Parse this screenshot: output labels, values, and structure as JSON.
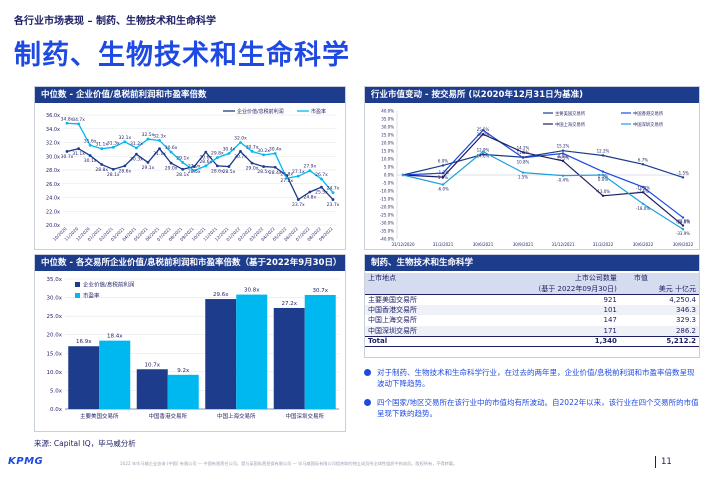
{
  "header": {
    "breadcrumb": "各行业市场表现 – 制药、生物技术和生命科学",
    "title": "制药、生物技术和生命科学"
  },
  "panel1": {
    "title": "中位数 - 企业价值/息税前利润和市盈率倍数",
    "legend": [
      "企业价值/息税前利润",
      "市盈率"
    ]
  },
  "panel2": {
    "title": "行业市值变动 - 按交易所 (以2020年12月31日为基准)",
    "legend": [
      "主要美国交易所",
      "中国香港交易所",
      "中国上海交易所",
      "中国深圳交易所"
    ]
  },
  "panel3": {
    "title": "中位数 - 各交易所企业价值/息税前利润和市盈率倍数（基于2022年9月30日）",
    "legend": [
      "企业价值/息税前利润",
      "市盈率"
    ]
  },
  "panel4": {
    "title": "制药、生物技术和生命科学",
    "head": {
      "col1": "上市地点",
      "col2": "上市公司数量",
      "col2b": "(基于 2022年09月30日)",
      "col3": "市值",
      "col3b": "美元 十亿元"
    },
    "rows": [
      {
        "place": "主要美国交易所",
        "count": "921",
        "cap": "4,250.4"
      },
      {
        "place": "中国香港交易所",
        "count": "101",
        "cap": "346.3"
      },
      {
        "place": "中国上海交易所",
        "count": "147",
        "cap": "329.3"
      },
      {
        "place": "中国深圳交易所",
        "count": "171",
        "cap": "286.2"
      }
    ],
    "total": {
      "place": "Total",
      "count": "1,340",
      "cap": "5,212.2"
    }
  },
  "bullets": [
    "对于制药、生物技术和生命科学行业，在过去的两年里，企业价值/息税前利润和市盈率倍数呈现波动下降趋势。",
    "四个国家/地区交易所在该行业中的市值均有所波动。自2022年以来，该行业在四个交易所的市值呈现下跌的趋势。"
  ],
  "source": "来源: Capital IQ，毕马威分析",
  "footer": "2022 年毕马威企业咨询 (中国) 有限公司 — 中国有限责任公司，是与英国私营担保有限公司 — 毕马威国际有限公司相关联的独立成员所全球性组织中的成员。版权所有，不得转载。",
  "page_number": "11",
  "logo": "KPMG",
  "colors": {
    "navy": "#1e3c8c",
    "blue": "#1e49e2",
    "cyan": "#1ea0e0",
    "teal": "#00b8f0"
  },
  "chart_data": [
    {
      "type": "line",
      "title": "中位数 - 企业价值/息税前利润和市盈率倍数",
      "ylim": [
        20,
        36
      ],
      "yticks": [
        "20.0x",
        "22.0x",
        "24.0x",
        "26.0x",
        "28.0x",
        "30.0x",
        "32.0x",
        "34.0x",
        "36.0x"
      ],
      "categories": [
        "10/2020",
        "11/2020",
        "12/2020",
        "01/2021",
        "02/2021",
        "03/2021",
        "04/2021",
        "05/2021",
        "06/2021",
        "07/2021",
        "08/2021",
        "09/2021",
        "10/2021",
        "11/2021",
        "12/2021",
        "01/2022",
        "02/2022",
        "03/2022",
        "04/2022",
        "05/2022",
        "06/2022",
        "07/2022",
        "08/2022",
        "09/2022"
      ],
      "series": [
        {
          "name": "企业价值/息税前利润",
          "values": [
            30.7,
            31.1,
            30.1,
            28.8,
            28.1,
            28.6,
            30.3,
            29.1,
            31.1,
            29.0,
            28.1,
            28.5,
            30.6,
            28.6,
            28.5,
            30.7,
            29.0,
            28.5,
            28.4,
            27.2,
            23.7,
            24.8,
            25.5,
            23.7
          ]
        },
        {
          "name": "市盈率",
          "values": [
            34.8,
            34.7,
            31.6,
            31.1,
            31.3,
            32.1,
            31.2,
            32.5,
            32.3,
            30.6,
            29.1,
            27.9,
            28.6,
            29.8,
            30.4,
            32.0,
            30.7,
            30.2,
            30.4,
            26.8,
            27.1,
            27.9,
            26.7,
            24.7
          ]
        }
      ],
      "labels_top": [
        "34.8x",
        "34.7x",
        "31.6x",
        "31.1x",
        "31.3x",
        "32.1x",
        "31.2x",
        "32.5x",
        "32.3x",
        "30.6x",
        "29.1x",
        "27.9x",
        "28.6x",
        "29.8x",
        "30.4x",
        "32.0x",
        "30.7x",
        "30.2x",
        "30.4x",
        "26.8x",
        "27.1x",
        "27.9x",
        "26.7x",
        "24.7x"
      ],
      "labels_bottom": [
        "30.7x",
        "31.1x",
        "30.1x",
        "28.8x",
        "28.1x",
        "28.6x",
        "30.3x",
        "29.1x",
        "31.1x",
        "29.0x",
        "28.1x",
        "28.5x",
        "30.6x",
        "28.6x",
        "28.5x",
        "30.7x",
        "29.0x",
        "28.5x",
        "28.4x",
        "27.2x",
        "23.7x",
        "24.8x",
        "25.5x",
        "23.7x"
      ]
    },
    {
      "type": "line",
      "title": "行业市值变动 - 按交易所 (以2020年12月31日为基准)",
      "ylim": [
        -40,
        40
      ],
      "yticks": [
        "-40.0%",
        "-35.0%",
        "-30.0%",
        "-25.0%",
        "-20.0%",
        "-15.0%",
        "-10.0%",
        "-5.0%",
        "0.0%",
        "5.0%",
        "10.0%",
        "15.0%",
        "20.0%",
        "25.0%",
        "30.0%",
        "35.0%",
        "40.0%"
      ],
      "categories": [
        "31/12/2020",
        "31/3/2021",
        "30/6/2021",
        "30/9/2021",
        "31/12/2021",
        "31/3/2022",
        "30/6/2022",
        "30/9/2022"
      ],
      "series": [
        {
          "name": "主要美国交易所",
          "values": [
            0,
            6.0,
            12.9,
            11.1,
            15.2,
            12.2,
            6.7,
            -1.5
          ],
          "labels": [
            "",
            "6.0%",
            "12.9%",
            "11.1%",
            "15.2%",
            "12.2%",
            "6.7%",
            "-1.5%"
          ]
        },
        {
          "name": "中国香港交易所",
          "values": [
            0,
            1.2,
            28.0,
            10.8,
            13.5,
            2.1,
            -7.5,
            -26.6
          ],
          "labels": [
            "",
            "1.2%",
            "28.0%",
            "10.8%",
            "13.5%",
            "2.1%",
            "-7.5%",
            "-26.6%"
          ]
        },
        {
          "name": "中国上海交易所",
          "values": [
            0,
            -1.3,
            25.5,
            14.2,
            8.8,
            -13.0,
            -10.8,
            -31.6
          ],
          "labels": [
            "",
            "-1.3%",
            "25.5%",
            "14.2%",
            "8.8%",
            "-13.0%",
            "-10.8%",
            "-31.6%"
          ]
        },
        {
          "name": "中国深圳交易所",
          "values": [
            0,
            -6.0,
            14.6,
            1.5,
            -0.4,
            0.0,
            -18.0,
            -33.9
          ],
          "labels": [
            "",
            "-6.0%",
            "14.6%",
            "1.5%",
            "-0.4%",
            "0.0%",
            "-18.0%",
            "-33.9%"
          ]
        }
      ]
    },
    {
      "type": "bar",
      "title": "中位数 - 各交易所企业价值/息税前利润和市盈率倍数（基于2022年9月30日）",
      "ylim": [
        0,
        35
      ],
      "yticks": [
        "0.0x",
        "5.0x",
        "10.0x",
        "15.0x",
        "20.0x",
        "25.0x",
        "30.0x",
        "35.0x"
      ],
      "categories": [
        "主要美国交易所",
        "中国香港交易所",
        "中国上海交易所",
        "中国深圳交易所"
      ],
      "series": [
        {
          "name": "企业价值/息税前利润",
          "values": [
            16.9,
            10.7,
            29.6,
            27.2
          ],
          "labels": [
            "16.9x",
            "10.7x",
            "29.6x",
            "27.2x"
          ]
        },
        {
          "name": "市盈率",
          "values": [
            18.4,
            9.2,
            30.8,
            30.7
          ],
          "labels": [
            "18.4x",
            "9.2x",
            "30.8x",
            "30.7x"
          ]
        }
      ]
    }
  ]
}
